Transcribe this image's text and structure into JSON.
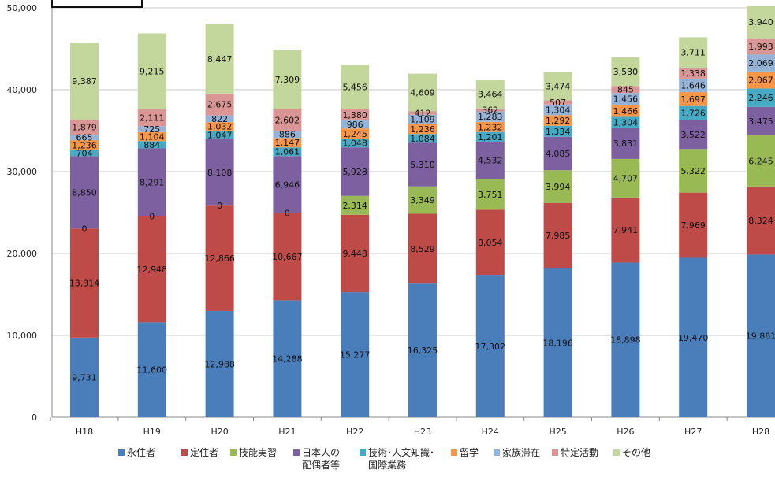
{
  "chart_data": {
    "type": "stacked-bar",
    "categories": [
      "H18",
      "H19",
      "H20",
      "H21",
      "H22",
      "H23",
      "H24",
      "H25",
      "H26",
      "H27",
      "H28"
    ],
    "ylim": [
      0,
      50000
    ],
    "yticks": [
      "0",
      "10,000",
      "20,000",
      "30,000",
      "40,000",
      "50,000"
    ],
    "grid": true,
    "legend_position": "bottom",
    "series": [
      {
        "name": "永住者",
        "color": "#4a7ebb",
        "values": [
          9731,
          11600,
          12988,
          14288,
          15277,
          16325,
          17302,
          18196,
          18898,
          19470,
          19861
        ],
        "labels": [
          "9,731",
          "11,600",
          "12,988",
          "14,288",
          "15,277",
          "16,325",
          "17,302",
          "18,196",
          "18,898",
          "19,470",
          "19,861"
        ]
      },
      {
        "name": "定住者",
        "color": "#be4b48",
        "values": [
          13314,
          12948,
          12866,
          10667,
          9448,
          8529,
          8054,
          7985,
          7941,
          7969,
          8324
        ],
        "labels": [
          "13,314",
          "12,948",
          "12,866",
          "10,667",
          "9,448",
          "8,529",
          "8,054",
          "7,985",
          "7,941",
          "7,969",
          "8,324"
        ]
      },
      {
        "name": "技能実習",
        "color": "#98b954",
        "values": [
          0,
          0,
          0,
          0,
          2314,
          3349,
          3751,
          3994,
          4707,
          5322,
          6245
        ],
        "labels": [
          "0",
          "0",
          "0",
          "0",
          "2,314",
          "3,349",
          "3,751",
          "3,994",
          "4,707",
          "5,322",
          "6,245"
        ]
      },
      {
        "name": "日本人の\n配偶者等",
        "color": "#7d60a0",
        "values": [
          8850,
          8291,
          8108,
          6946,
          5928,
          5310,
          4532,
          4085,
          3831,
          3522,
          3475
        ],
        "labels": [
          "8,850",
          "8,291",
          "8,108",
          "6,946",
          "5,928",
          "5,310",
          "4,532",
          "4,085",
          "3,831",
          "3,522",
          "3,475"
        ]
      },
      {
        "name": "技術･人文知識･\n国際業務",
        "color": "#46aac5",
        "values": [
          704,
          884,
          1047,
          1061,
          1048,
          1084,
          1201,
          1334,
          1304,
          1726,
          2246
        ],
        "labels": [
          "704",
          "884",
          "1,047",
          "1,061",
          "1,048",
          "1,084",
          "1,201",
          "1,334",
          "1,304",
          "1,726",
          "2,246"
        ]
      },
      {
        "name": "留学",
        "color": "#f79646",
        "values": [
          1236,
          1104,
          1032,
          1147,
          1245,
          1236,
          1232,
          1292,
          1466,
          1697,
          2067
        ],
        "labels": [
          "1,236",
          "1,104",
          "1,032",
          "1,147",
          "1,245",
          "1,236",
          "1,232",
          "1,292",
          "1,466",
          "1,697",
          "2,067"
        ]
      },
      {
        "name": "家族滞在",
        "color": "#95b3d7",
        "values": [
          665,
          725,
          822,
          886,
          986,
          1109,
          1283,
          1304,
          1456,
          1646,
          2069
        ],
        "labels": [
          "665",
          "725",
          "822",
          "886",
          "986",
          "1,109",
          "1,283",
          "1,304",
          "1,456",
          "1,646",
          "2,069"
        ]
      },
      {
        "name": "特定活動",
        "color": "#d99694",
        "values": [
          1879,
          2111,
          2675,
          2602,
          1380,
          412,
          362,
          507,
          845,
          1338,
          1993
        ],
        "labels": [
          "1,879",
          "2,111",
          "2,675",
          "2,602",
          "1,380",
          "412",
          "362",
          "507",
          "845",
          "1,338",
          "1,993"
        ]
      },
      {
        "name": "その他",
        "color": "#c3d69b",
        "values": [
          9387,
          9215,
          8447,
          7309,
          5456,
          4609,
          3464,
          3474,
          3530,
          3711,
          3940
        ],
        "labels": [
          "9,387",
          "9,215",
          "8,447",
          "7,309",
          "5,456",
          "4,609",
          "3,464",
          "3,474",
          "3,530",
          "3,711",
          "3,940"
        ]
      }
    ]
  }
}
